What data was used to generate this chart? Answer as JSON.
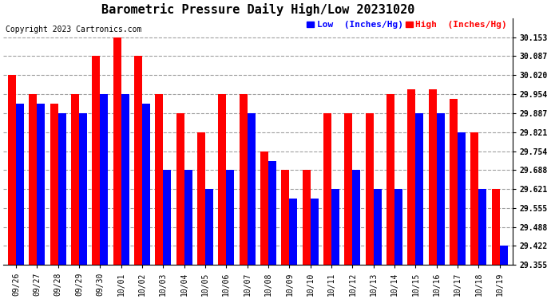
{
  "title": "Barometric Pressure Daily High/Low 20231020",
  "copyright": "Copyright 2023 Cartronics.com",
  "legend_low": "Low  (Inches/Hg)",
  "legend_high": "High  (Inches/Hg)",
  "dates": [
    "09/26",
    "09/27",
    "09/28",
    "09/29",
    "09/30",
    "10/01",
    "10/02",
    "10/03",
    "10/04",
    "10/05",
    "10/06",
    "10/07",
    "10/08",
    "10/09",
    "10/10",
    "10/11",
    "10/12",
    "10/13",
    "10/14",
    "10/15",
    "10/16",
    "10/17",
    "10/18",
    "10/19"
  ],
  "high_values": [
    30.02,
    29.954,
    29.921,
    29.954,
    30.087,
    30.153,
    30.087,
    29.954,
    29.887,
    29.821,
    29.954,
    29.954,
    29.754,
    29.688,
    29.688,
    29.887,
    29.887,
    29.887,
    29.954,
    29.97,
    29.97,
    29.937,
    29.821,
    29.621
  ],
  "low_values": [
    29.921,
    29.921,
    29.887,
    29.887,
    29.954,
    29.954,
    29.921,
    29.688,
    29.688,
    29.621,
    29.688,
    29.887,
    29.72,
    29.588,
    29.588,
    29.621,
    29.688,
    29.621,
    29.621,
    29.887,
    29.887,
    29.821,
    29.621,
    29.422
  ],
  "ylim_min": 29.355,
  "ylim_max": 30.22,
  "yticks": [
    30.153,
    30.087,
    30.02,
    29.954,
    29.887,
    29.821,
    29.754,
    29.688,
    29.621,
    29.555,
    29.488,
    29.422,
    29.355
  ],
  "bar_width": 0.38,
  "high_color": "#ff0000",
  "low_color": "#0000ff",
  "background_color": "#ffffff",
  "grid_color": "#888888",
  "title_fontsize": 11,
  "tick_fontsize": 7,
  "label_fontsize": 8,
  "copyright_fontsize": 7
}
